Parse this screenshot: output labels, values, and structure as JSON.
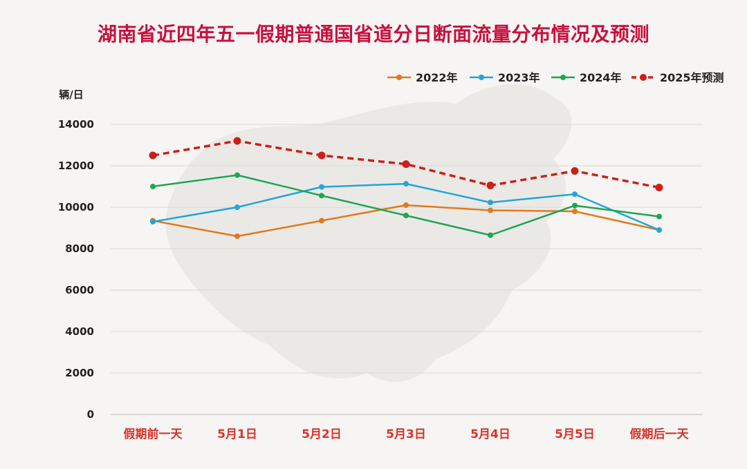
{
  "title": "湖南省近四年五一假期普通国省道分日断面流量分布情况及预测",
  "colors": {
    "title": "#c8103e",
    "category_label": "#d8322a",
    "grid": "#d6d6d6",
    "axis_text": "#222222",
    "background": "#f6f5f3"
  },
  "chart_data": {
    "type": "line",
    "title": "湖南省近四年五一假期普通国省道分日断面流量分布情况及预测",
    "ylabel": "辆/日",
    "xlabel": "",
    "ylim": [
      0,
      14000
    ],
    "yticks": [
      0,
      2000,
      4000,
      6000,
      8000,
      10000,
      12000,
      14000
    ],
    "grid": true,
    "legend_position": "top-right",
    "categories": [
      "假期前一天",
      "5月1日",
      "5月2日",
      "5月3日",
      "5月4日",
      "5月5日",
      "假期后一天"
    ],
    "series": [
      {
        "name": "2022年",
        "color": "#e07a1f",
        "dashed": false,
        "values": [
          9350,
          8600,
          9350,
          10100,
          9850,
          9800,
          8900
        ]
      },
      {
        "name": "2023年",
        "color": "#22a5d8",
        "dashed": false,
        "values": [
          9300,
          10000,
          10980,
          11130,
          10230,
          10630,
          8900
        ]
      },
      {
        "name": "2024年",
        "color": "#1ca653",
        "dashed": false,
        "values": [
          11000,
          11550,
          10560,
          9600,
          8650,
          10080,
          9550
        ]
      },
      {
        "name": "2025年预测",
        "color": "#cc1f1a",
        "dashed": true,
        "values": [
          12500,
          13200,
          12500,
          12080,
          11050,
          11750,
          10950
        ]
      }
    ]
  }
}
